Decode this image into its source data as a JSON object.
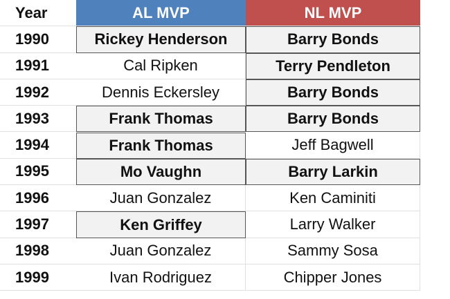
{
  "table": {
    "header": {
      "year": "Year",
      "al": "AL MVP",
      "nl": "NL MVP",
      "al_color": "#4f81bd",
      "nl_color": "#c0504d"
    },
    "rows": [
      {
        "year": "1990",
        "al": "Rickey Henderson",
        "nl": "Barry Bonds",
        "al_bold": true,
        "nl_bold": true
      },
      {
        "year": "1991",
        "al": "Cal Ripken",
        "nl": "Terry Pendleton",
        "al_bold": false,
        "nl_bold": true
      },
      {
        "year": "1992",
        "al": "Dennis Eckersley",
        "nl": "Barry Bonds",
        "al_bold": false,
        "nl_bold": true
      },
      {
        "year": "1993",
        "al": "Frank Thomas",
        "nl": "Barry Bonds",
        "al_bold": true,
        "nl_bold": true
      },
      {
        "year": "1994",
        "al": "Frank Thomas",
        "nl": "Jeff Bagwell",
        "al_bold": true,
        "nl_bold": false
      },
      {
        "year": "1995",
        "al": "Mo Vaughn",
        "nl": "Barry Larkin",
        "al_bold": true,
        "nl_bold": true
      },
      {
        "year": "1996",
        "al": "Juan Gonzalez",
        "nl": "Ken Caminiti",
        "al_bold": false,
        "nl_bold": false
      },
      {
        "year": "1997",
        "al": "Ken Griffey",
        "nl": "Larry Walker",
        "al_bold": true,
        "nl_bold": false
      },
      {
        "year": "1998",
        "al": "Juan Gonzalez",
        "nl": "Sammy Sosa",
        "al_bold": false,
        "nl_bold": false
      },
      {
        "year": "1999",
        "al": "Ivan Rodriguez",
        "nl": "Chipper Jones",
        "al_bold": false,
        "nl_bold": false
      }
    ]
  }
}
